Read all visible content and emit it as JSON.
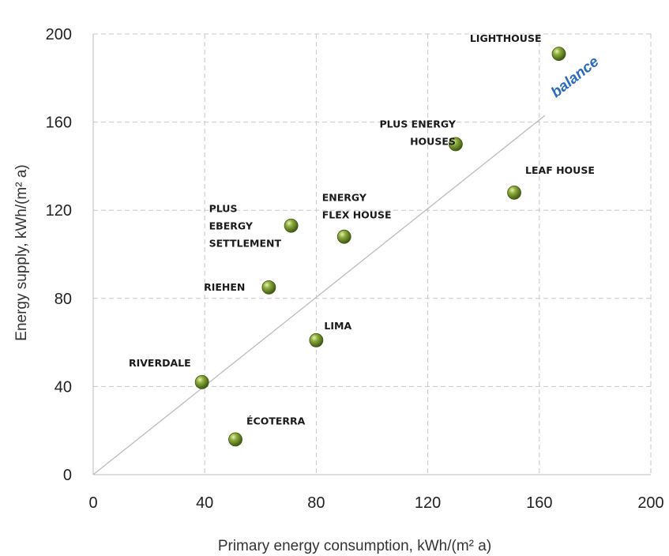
{
  "chart_data": {
    "type": "scatter",
    "title": "",
    "xlabel": "Primary energy consumption, kWh/(m² a)",
    "ylabel": "Energy supply, kWh/(m² a)",
    "xlim": [
      0,
      200
    ],
    "ylim": [
      0,
      200
    ],
    "xticks": [
      0,
      40,
      80,
      120,
      160,
      200
    ],
    "yticks": [
      0,
      40,
      80,
      120,
      160,
      200
    ],
    "grid": true,
    "legend": "none",
    "marker_color": "#6f8f2a",
    "balance_line": {
      "label": "balance",
      "from": [
        0,
        0
      ],
      "to": [
        162,
        163
      ],
      "color": "#bbbbbb",
      "label_color": "#2a6bbf"
    },
    "points": [
      {
        "name": "LIGHTHOUSE",
        "x": 167,
        "y": 191,
        "label_lines": [
          "LIGHTHOUSE"
        ]
      },
      {
        "name": "PLUS ENERGY HOUSES",
        "x": 130,
        "y": 150,
        "label_lines": [
          "PLUS ENERGY",
          "HOUSES"
        ]
      },
      {
        "name": "LEAF HOUSE",
        "x": 151,
        "y": 128,
        "label_lines": [
          "LEAF HOUSE"
        ]
      },
      {
        "name": "PLUS EBERGY SETTLEMENT",
        "x": 71,
        "y": 113,
        "label_lines": [
          "PLUS",
          "EBERGY",
          "SETTLEMENT"
        ]
      },
      {
        "name": "ENERGY FLEX HOUSE",
        "x": 90,
        "y": 108,
        "label_lines": [
          "ENERGY",
          "FLEX HOUSE"
        ]
      },
      {
        "name": "RIEHEN",
        "x": 63,
        "y": 85,
        "label_lines": [
          "RIEHEN"
        ]
      },
      {
        "name": "LIMA",
        "x": 80,
        "y": 61,
        "label_lines": [
          "LIMA"
        ]
      },
      {
        "name": "RIVERDALE",
        "x": 39,
        "y": 42,
        "label_lines": [
          "RIVERDALE"
        ]
      },
      {
        "name": "ÉCOTERRA",
        "x": 51,
        "y": 16,
        "label_lines": [
          "ÉCOTERRA"
        ]
      }
    ]
  }
}
